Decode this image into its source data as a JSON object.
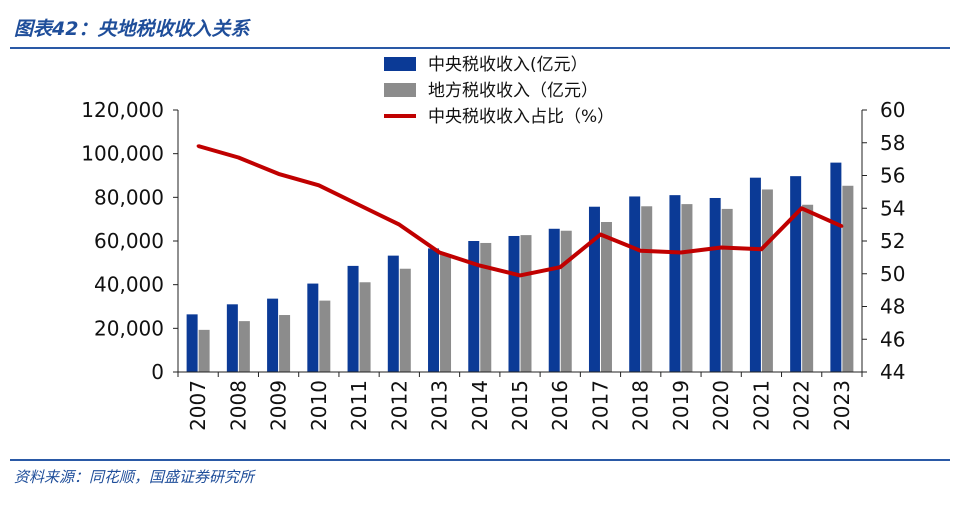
{
  "figure": {
    "title": "图表42：央地税收收入关系",
    "source": "资料来源：同花顺，国盛证券研究所"
  },
  "colors": {
    "central": "#0b3a96",
    "local": "#8c8c8c",
    "ratio": "#c00000",
    "accent": "#1f4e9a"
  },
  "chart_data": {
    "type": "bar",
    "title": "央地税收收入关系",
    "categories": [
      "2007",
      "2008",
      "2009",
      "2010",
      "2011",
      "2012",
      "2013",
      "2014",
      "2015",
      "2016",
      "2017",
      "2018",
      "2019",
      "2020",
      "2021",
      "2022",
      "2023"
    ],
    "series": [
      {
        "name": "中央税收收入(亿元）",
        "type": "bar",
        "axis": "left",
        "values": [
          26400,
          31000,
          33600,
          40500,
          48600,
          53300,
          56600,
          60000,
          62300,
          65600,
          75700,
          80400,
          81000,
          79700,
          89000,
          89700,
          95900
        ]
      },
      {
        "name": "地方税收收入（亿元）",
        "type": "bar",
        "axis": "left",
        "values": [
          19300,
          23300,
          26100,
          32700,
          41100,
          47300,
          53900,
          59100,
          62700,
          64700,
          68700,
          75900,
          76900,
          74700,
          83600,
          76600,
          85300
        ]
      },
      {
        "name": "中央税收收入占比（%）",
        "type": "line",
        "axis": "right",
        "values": [
          57.8,
          57.1,
          56.1,
          55.4,
          54.2,
          53.0,
          51.3,
          50.5,
          49.9,
          50.4,
          52.4,
          51.4,
          51.3,
          51.6,
          51.5,
          54.0,
          52.9
        ]
      }
    ],
    "y_left": {
      "min": 0,
      "max": 120000,
      "ticks": [
        "0",
        "20,000",
        "40,000",
        "60,000",
        "80,000",
        "100,000",
        "120,000"
      ]
    },
    "y_right": {
      "min": 44,
      "max": 60,
      "ticks": [
        "44",
        "46",
        "48",
        "50",
        "52",
        "54",
        "56",
        "58",
        "60"
      ]
    },
    "legend_position": "top-center",
    "grid": false
  }
}
